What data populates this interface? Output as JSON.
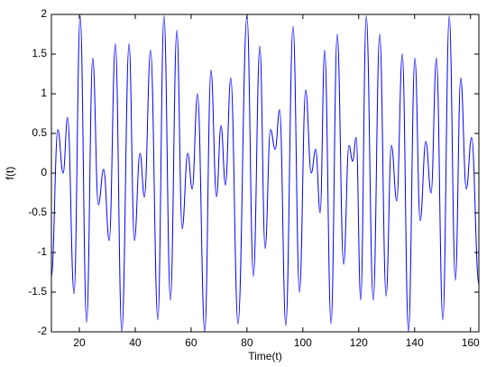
{
  "chart_data": {
    "type": "line",
    "x_label": "Time(t)",
    "y_label": "f(t)",
    "x": [
      10.0,
      12.3,
      14.2,
      15.8,
      18.1,
      20.3,
      22.6,
      24.8,
      26.8,
      28.7,
      30.7,
      32.9,
      35.2,
      37.8,
      39.7,
      41.7,
      43.3,
      45.5,
      48.1,
      50.3,
      52.6,
      54.9,
      56.8,
      58.8,
      60.4,
      62.3,
      64.9,
      67.1,
      69.1,
      70.7,
      72.3,
      74.2,
      76.8,
      80.0,
      82.3,
      84.6,
      86.5,
      88.4,
      90.1,
      91.7,
      93.9,
      96.5,
      98.8,
      101.0,
      103.0,
      104.6,
      106.2,
      107.8,
      110.1,
      112.3,
      114.6,
      116.5,
      117.8,
      119.1,
      120.7,
      122.7,
      125.2,
      127.5,
      129.8,
      131.7,
      133.6,
      135.6,
      137.8,
      140.1,
      142.0,
      144.0,
      145.9,
      147.8,
      150.1,
      152.4,
      154.6,
      156.5,
      158.5,
      160.4,
      163.0
    ],
    "series": [
      {
        "color": "#0000ff",
        "values": [
          -1.3,
          0.55,
          0.0,
          0.7,
          -1.52,
          1.98,
          -1.88,
          1.45,
          -0.4,
          0.05,
          -0.85,
          1.63,
          -2.0,
          1.63,
          -0.85,
          0.25,
          -0.3,
          1.55,
          -1.85,
          1.98,
          -1.6,
          1.8,
          -0.7,
          0.25,
          -0.2,
          1.0,
          -2.0,
          1.3,
          -0.3,
          0.6,
          -0.15,
          1.2,
          -1.9,
          1.98,
          -1.3,
          1.6,
          -0.95,
          0.55,
          0.3,
          0.8,
          -1.92,
          1.85,
          -1.5,
          1.05,
          0.0,
          0.3,
          -0.5,
          1.55,
          -1.9,
          1.75,
          -1.15,
          0.35,
          0.15,
          0.45,
          -1.6,
          1.98,
          -1.6,
          1.75,
          -1.55,
          0.35,
          -0.35,
          1.5,
          -2.0,
          1.45,
          -0.6,
          0.4,
          -0.25,
          1.45,
          -1.85,
          1.98,
          -1.35,
          1.2,
          -0.2,
          0.45,
          -1.4
        ]
      }
    ],
    "xlim": [
      10,
      163
    ],
    "ylim": [
      -2,
      2
    ],
    "xticks": [
      20,
      40,
      60,
      80,
      100,
      120,
      140,
      160
    ],
    "yticks": [
      -2,
      -1.5,
      -1,
      -0.5,
      0,
      0.5,
      1,
      1.5,
      2
    ],
    "grid": false
  }
}
